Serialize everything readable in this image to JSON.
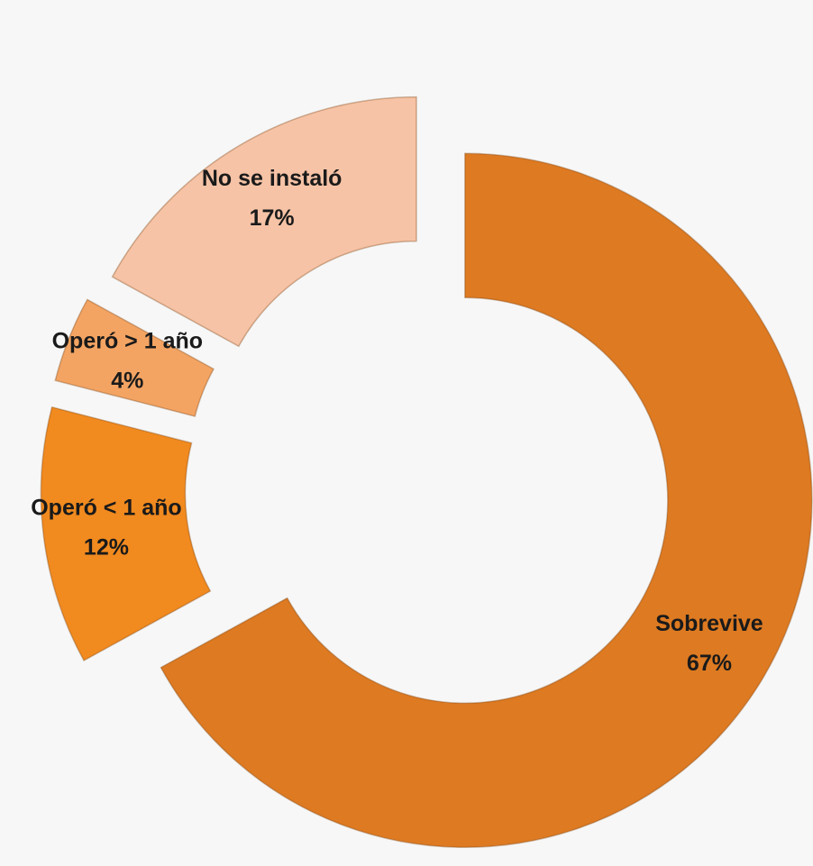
{
  "chart_data": {
    "type": "donut",
    "categories": [
      "Sobrevive",
      "Operó < 1 año",
      "Operó > 1 año",
      "No se instaló"
    ],
    "values": [
      67,
      12,
      4,
      17
    ],
    "value_labels": [
      "67%",
      "12%",
      "4%",
      "17%"
    ],
    "colors": [
      "#dd7a22",
      "#f18a1f",
      "#f3a463",
      "#f6c3a6"
    ]
  }
}
